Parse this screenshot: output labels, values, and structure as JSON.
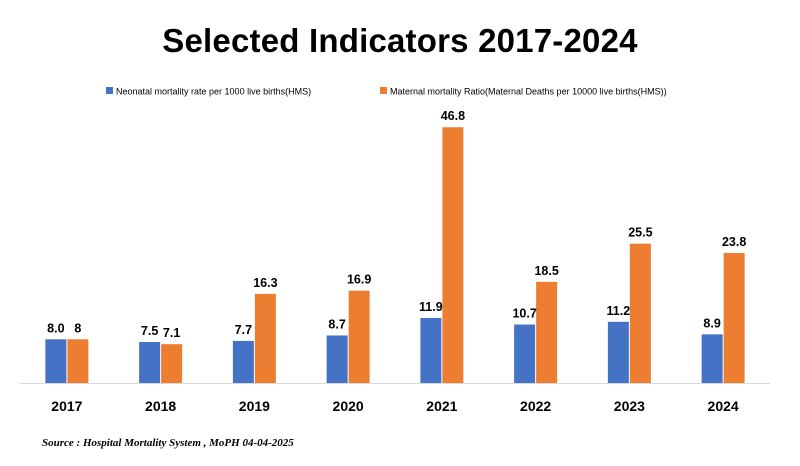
{
  "chart_data": {
    "type": "bar",
    "title": "Selected Indicators 2017-2024",
    "categories": [
      "2017",
      "2018",
      "2019",
      "2020",
      "2021",
      "2022",
      "2023",
      "2024"
    ],
    "series": [
      {
        "name": "Neonatal mortality rate per 1000 live births(HMS)",
        "color": "#4472C4",
        "values": [
          8.0,
          7.5,
          7.7,
          8.7,
          11.9,
          10.7,
          11.2,
          8.9
        ],
        "labels": [
          "8.0",
          "7.5",
          "7.7",
          "8.7",
          "11.9",
          "10.7",
          "11.2",
          "8.9"
        ]
      },
      {
        "name": "Maternal mortality Ratio(Maternal Deaths per 10000 live births(HMS))",
        "color": "#ED7D31",
        "values": [
          8,
          7.1,
          16.3,
          16.9,
          46.8,
          18.5,
          25.5,
          23.8
        ],
        "labels": [
          "8",
          "7.1",
          "16.3",
          "16.9",
          "46.8",
          "18.5",
          "25.5",
          "23.8"
        ]
      }
    ],
    "xlabel": "",
    "ylabel": "",
    "ylim": [
      0,
      50
    ],
    "y_axis_visible": false,
    "grid": false,
    "legend_position": "top"
  },
  "footer": {
    "source": "Source : Hospital Mortality System , MoPH 04-04-2025"
  }
}
